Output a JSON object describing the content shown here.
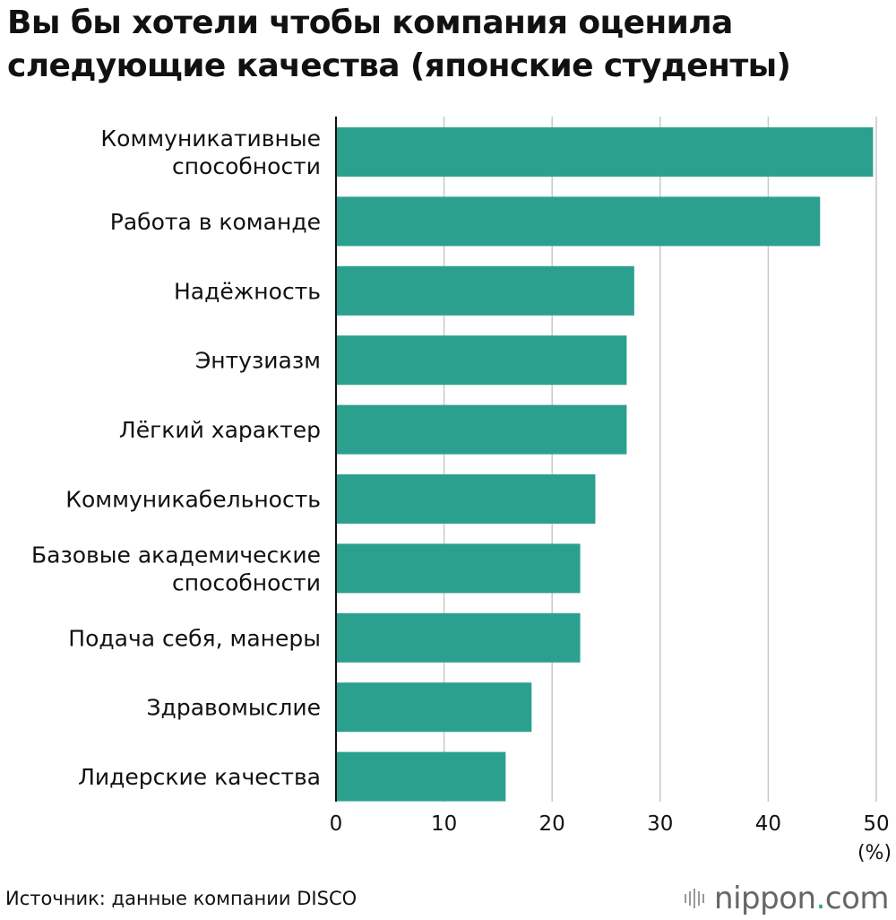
{
  "chart_data": {
    "type": "bar",
    "orientation": "horizontal",
    "title": "Вы бы хотели чтобы компания оценила следующие качества (японские студенты)",
    "categories": [
      [
        "Коммуникативные",
        "способности"
      ],
      [
        "Работа в команде"
      ],
      [
        "Надёжность"
      ],
      [
        "Энтузиазм"
      ],
      [
        "Лёгкий характер"
      ],
      [
        "Коммуникабельность"
      ],
      [
        "Базовые академические",
        "способности"
      ],
      [
        "Подача себя, манеры"
      ],
      [
        "Здравомыслие"
      ],
      [
        "Лидерские качества"
      ]
    ],
    "values": [
      49.7,
      44.8,
      27.6,
      26.9,
      26.9,
      24.0,
      22.6,
      22.6,
      18.1,
      15.7
    ],
    "xlim": [
      0,
      50
    ],
    "ticks": [
      "0",
      "10",
      "20",
      "30",
      "40",
      "50"
    ],
    "unit": "(%)",
    "grid": true,
    "bar_color": "#2ca08f"
  },
  "source": "Источник: данные компании DISCO",
  "logo": {
    "name": "nippon",
    "dot": ".",
    "suffix": "com"
  }
}
